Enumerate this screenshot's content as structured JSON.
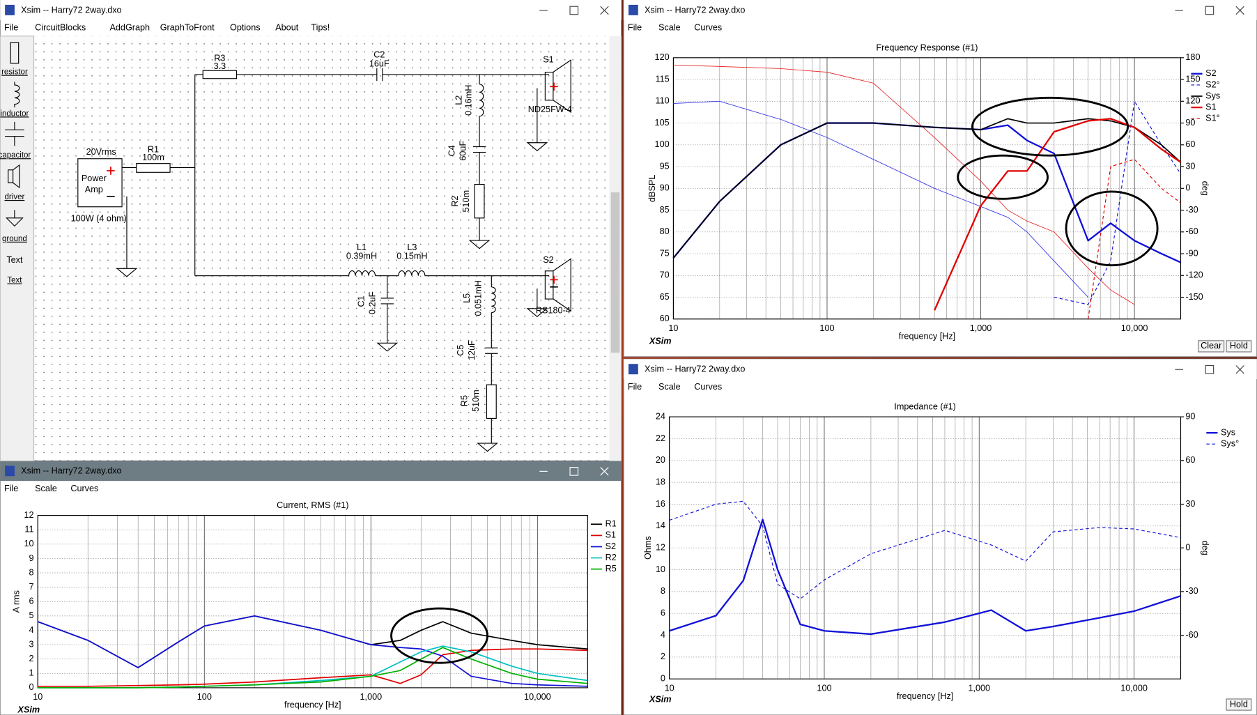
{
  "schematic_window": {
    "title": "Xsim -- Harry72 2way.dxo",
    "menu": [
      "File",
      "CircuitBlocks",
      "AddGraph",
      "GraphToFront",
      "Options",
      "About",
      "Tips!"
    ],
    "toolbox": [
      "resistor",
      "inductor",
      "capacitor",
      "driver",
      "ground",
      "Text",
      "Text"
    ],
    "source": {
      "level": "20Vrms",
      "name_lines": [
        "Power",
        "Amp"
      ],
      "rating": "100W (4 ohm)"
    },
    "components": [
      {
        "label": "R3",
        "value": "3.3"
      },
      {
        "label": "C2",
        "value": "16uF"
      },
      {
        "label": "S1",
        "value": "ND25FW-4"
      },
      {
        "label": "L2",
        "value": "0.16mH"
      },
      {
        "label": "C4",
        "value": "60uF"
      },
      {
        "label": "R2",
        "value": "510m"
      },
      {
        "label": "R1",
        "value": "100m"
      },
      {
        "label": "L1",
        "value": "0.39mH"
      },
      {
        "label": "L3",
        "value": "0.15mH"
      },
      {
        "label": "C1",
        "value": "0.2uF"
      },
      {
        "label": "L5",
        "value": "0.051mH"
      },
      {
        "label": "C5",
        "value": "12uF"
      },
      {
        "label": "R5",
        "value": "510m"
      },
      {
        "label": "S2",
        "value": "RS180-4"
      }
    ]
  },
  "frequency_window": {
    "title": "Xsim -- Harry72 2way.dxo",
    "menu": [
      "File",
      "Scale",
      "Curves"
    ],
    "buttons": [
      "Clear",
      "Hold"
    ],
    "brand": "XSim",
    "chart": {
      "type": "line",
      "title": "Frequency Response (#1)",
      "xlabel": "frequency [Hz]",
      "ylabel": "dBSPL",
      "y2label": "deg",
      "log_x": true,
      "xlim": [
        10,
        20000
      ],
      "ylim": [
        60,
        120
      ],
      "y2lim": [
        -180,
        180
      ],
      "xticks": [
        10,
        100,
        {
          "value": 1000,
          "label": "1,000"
        },
        {
          "value": 10000,
          "label": "10,000"
        }
      ],
      "yticks": [
        60,
        65,
        70,
        75,
        80,
        85,
        90,
        95,
        100,
        105,
        110,
        115,
        120
      ],
      "y2ticks": [
        -150,
        -120,
        -90,
        -60,
        -30,
        0,
        30,
        60,
        90,
        120,
        150,
        180
      ],
      "x": [
        10,
        20,
        50,
        100,
        200,
        500,
        1000,
        1500,
        2000,
        3000,
        5000,
        7000,
        10000,
        15000,
        20000
      ],
      "series": [
        {
          "color": "#3a3ae8",
          "width": 0.8,
          "axis": "y2",
          "values": [
            117,
            120,
            95,
            70,
            40,
            0,
            -25,
            -40,
            -60,
            -100,
            -150,
            null,
            null,
            null,
            null
          ]
        },
        {
          "color": "#e83030",
          "width": 0.8,
          "axis": "y2",
          "values": [
            170,
            168,
            165,
            160,
            145,
            70,
            10,
            -30,
            -45,
            -60,
            -110,
            -140,
            -160,
            null,
            null
          ]
        },
        {
          "name": "S2",
          "color": "#1010d8",
          "width": 2,
          "values": [
            74,
            87,
            100,
            105,
            105,
            104,
            103.5,
            104.5,
            101,
            98,
            78,
            82,
            78,
            75,
            73
          ]
        },
        {
          "name": "S2°",
          "color": "#1010d8",
          "width": 1,
          "dash": true,
          "axis": "y2",
          "values": [
            null,
            null,
            null,
            null,
            null,
            null,
            null,
            null,
            null,
            -150,
            -160,
            -100,
            120,
            60,
            20
          ]
        },
        {
          "name": "Sys",
          "color": "#000000",
          "width": 1.5,
          "values": [
            74,
            87,
            100,
            105,
            105,
            104,
            103.5,
            106,
            105,
            105,
            106,
            105.5,
            104,
            100,
            96
          ]
        },
        {
          "name": "S1",
          "color": "#e00000",
          "width": 2,
          "values": [
            null,
            null,
            null,
            null,
            null,
            62,
            86,
            94,
            94,
            103,
            105.5,
            106,
            104,
            99,
            96
          ]
        },
        {
          "name": "S1°",
          "color": "#e00000",
          "width": 1,
          "dash": true,
          "axis": "y2",
          "values": [
            null,
            null,
            null,
            null,
            null,
            null,
            null,
            null,
            null,
            null,
            -180,
            30,
            40,
            0,
            -20
          ]
        }
      ]
    }
  },
  "impedance_window": {
    "title": "Xsim -- Harry72 2way.dxo",
    "menu": [
      "File",
      "Scale",
      "Curves"
    ],
    "buttons": [
      "Hold"
    ],
    "brand": "XSim",
    "chart": {
      "type": "line",
      "title": "Impedance (#1)",
      "xlabel": "frequency [Hz]",
      "ylabel": "Ohms",
      "y2label": "deg",
      "log_x": true,
      "xlim": [
        10,
        20000
      ],
      "ylim": [
        0,
        24
      ],
      "y2lim": [
        -90,
        90
      ],
      "xticks": [
        10,
        100,
        {
          "value": 1000,
          "label": "1,000"
        },
        {
          "value": 10000,
          "label": "10,000"
        }
      ],
      "yticks": [
        0,
        2,
        4,
        6,
        8,
        10,
        12,
        14,
        16,
        18,
        20,
        22,
        24
      ],
      "y2ticks": [
        -60,
        -30,
        0,
        30,
        60,
        90
      ],
      "x": [
        10,
        20,
        30,
        40,
        50,
        70,
        100,
        200,
        600,
        1200,
        2000,
        3000,
        6000,
        10000,
        20000
      ],
      "series": [
        {
          "name": "Sys",
          "color": "#1010d8",
          "width": 2,
          "values": [
            4.4,
            5.8,
            9,
            14.6,
            10,
            5,
            4.4,
            4.1,
            5.2,
            6.3,
            4.4,
            4.8,
            5.6,
            6.2,
            7.6
          ]
        },
        {
          "name": "Sys°",
          "color": "#1010d8",
          "width": 1,
          "dash": true,
          "axis": "y2",
          "values": [
            19,
            30,
            32,
            15,
            -25,
            -35,
            -22,
            -4,
            12,
            2,
            -9,
            11,
            14,
            13,
            7
          ]
        }
      ]
    }
  },
  "current_window": {
    "title": "Xsim -- Harry72 2way.dxo",
    "menu": [
      "File",
      "Scale",
      "Curves"
    ],
    "brand": "XSim",
    "chart": {
      "type": "line",
      "title": "Current, RMS (#1)",
      "xlabel": "frequency [Hz]",
      "ylabel": "A rms",
      "log_x": true,
      "xlim": [
        10,
        20000
      ],
      "ylim": [
        0,
        12
      ],
      "xticks": [
        10,
        100,
        {
          "value": 1000,
          "label": "1,000"
        },
        {
          "value": 10000,
          "label": "10,000"
        }
      ],
      "yticks": [
        0,
        1,
        2,
        3,
        4,
        5,
        6,
        7,
        8,
        9,
        10,
        11,
        12
      ],
      "x": [
        10,
        20,
        40,
        70,
        100,
        200,
        500,
        1000,
        1500,
        2000,
        2700,
        4000,
        7000,
        10000,
        20000
      ],
      "series": [
        {
          "name": "R1",
          "color": "#000000",
          "width": 1.5,
          "values": [
            4.6,
            3.3,
            1.4,
            3.2,
            4.3,
            5.0,
            4.0,
            3.0,
            3.3,
            4.0,
            4.6,
            3.8,
            3.3,
            3.0,
            2.7
          ]
        },
        {
          "name": "S1",
          "color": "#e00000",
          "width": 1.5,
          "values": [
            0.1,
            0.1,
            0.15,
            0.2,
            0.25,
            0.4,
            0.7,
            0.9,
            0.3,
            0.9,
            2.3,
            2.6,
            2.7,
            2.7,
            2.6
          ]
        },
        {
          "name": "S2",
          "color": "#1010d8",
          "width": 1.5,
          "values": [
            4.6,
            3.3,
            1.4,
            3.2,
            4.3,
            5.0,
            4.0,
            3.0,
            2.8,
            2.7,
            2.2,
            0.8,
            0.3,
            0.2,
            0.1
          ]
        },
        {
          "name": "R2",
          "color": "#00c0c0",
          "width": 1.5,
          "values": [
            0,
            0,
            0,
            0.05,
            0.1,
            0.2,
            0.5,
            0.8,
            1.8,
            2.5,
            2.9,
            2.5,
            1.5,
            1.0,
            0.5
          ]
        },
        {
          "name": "R5",
          "color": "#00b000",
          "width": 1.5,
          "values": [
            0,
            0,
            0,
            0.05,
            0.1,
            0.2,
            0.4,
            0.8,
            1.2,
            2.0,
            2.8,
            2.0,
            1.0,
            0.6,
            0.3
          ]
        }
      ]
    }
  }
}
